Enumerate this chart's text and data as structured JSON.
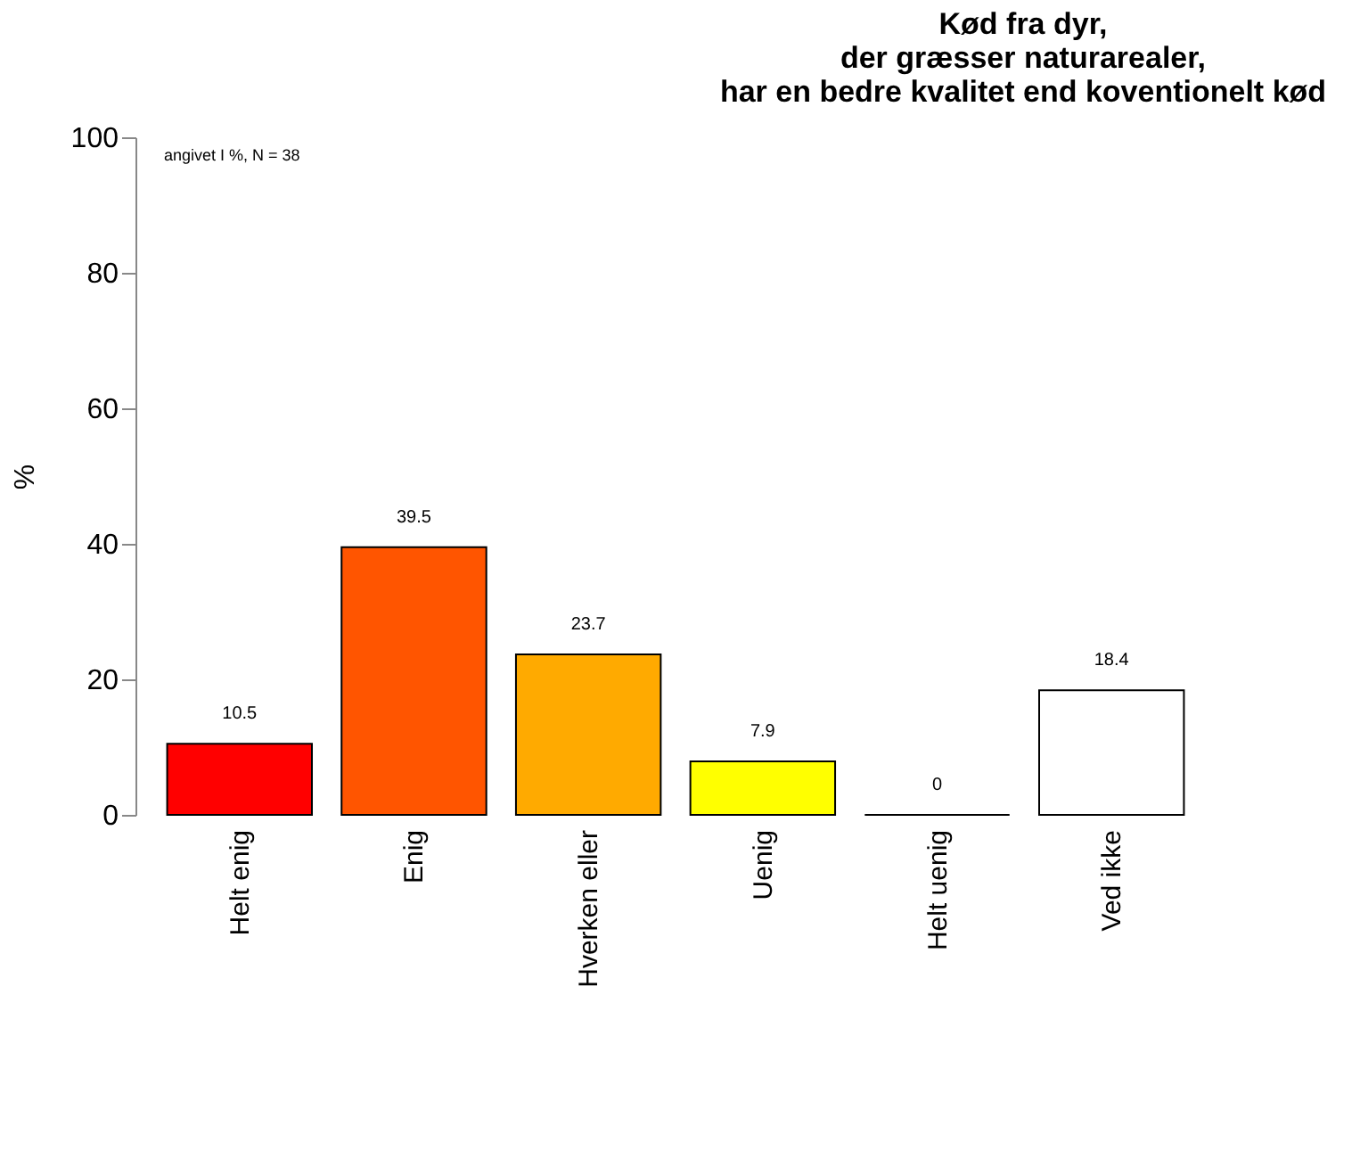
{
  "chart_data": {
    "type": "bar",
    "title": "Kød fra dyr,\nder græsser naturarealer,\nhar en bedre kvalitet end koventionelt kød",
    "ylabel": "%",
    "annotations": [
      "angivet I %, N = 38"
    ],
    "categories": [
      "Helt enig",
      "Enig",
      "Hverken eller",
      "Uenig",
      "Helt uenig",
      "Ved ikke"
    ],
    "values": [
      10.5,
      39.5,
      23.7,
      7.9,
      0,
      18.4
    ],
    "colors": [
      "#ff0000",
      "#ff5500",
      "#ffaa00",
      "#ffff00",
      "#000000",
      "#ffffff"
    ],
    "ylim": [
      0,
      100
    ],
    "yticks": [
      0,
      20,
      40,
      60,
      80,
      100
    ],
    "grid": false,
    "data_labels": true
  }
}
